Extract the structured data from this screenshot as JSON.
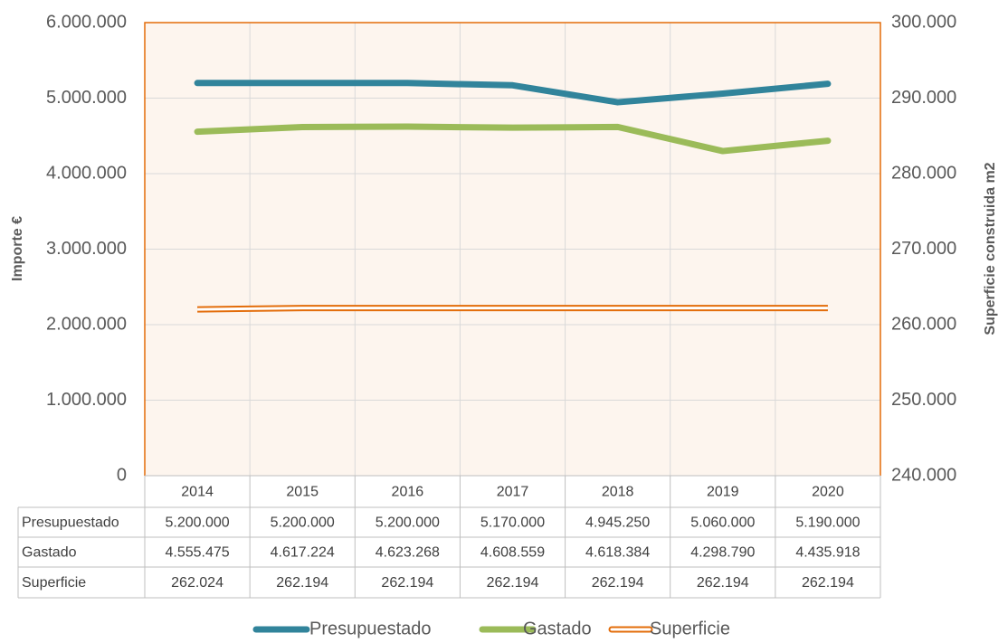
{
  "chart_data": {
    "type": "line",
    "y_label": "Importe €",
    "y2_label": "Superficie construida m2",
    "categories": [
      "2014",
      "2015",
      "2016",
      "2017",
      "2018",
      "2019",
      "2020"
    ],
    "series": [
      {
        "name": "Presupuestado",
        "color": "#31849b",
        "values": [
          5200000,
          5200000,
          5200000,
          5170000,
          4945250,
          5060000,
          5190000
        ],
        "value_labels": [
          "5.200.000",
          "5.200.000",
          "5.200.000",
          "5.170.000",
          "4.945.250",
          "5.060.000",
          "5.190.000"
        ]
      },
      {
        "name": "Gastado",
        "color": "#9bbb59",
        "values": [
          4555475,
          4617224,
          4623268,
          4608559,
          4618384,
          4298790,
          4435918
        ],
        "value_labels": [
          "4.555.475",
          "4.617.224",
          "4.623.268",
          "4.608.559",
          "4.618.384",
          "4.298.790",
          "4.435.918"
        ]
      },
      {
        "name": "Superficie",
        "color": "#e36c09",
        "axis": "y2",
        "values": [
          262024,
          262194,
          262194,
          262194,
          262194,
          262194,
          262194
        ],
        "value_labels": [
          "262.024",
          "262.194",
          "262.194",
          "262.194",
          "262.194",
          "262.194",
          "262.194"
        ]
      }
    ],
    "ylim": [
      0,
      6000000
    ],
    "yticks": [
      0,
      {
        "value": 1000000,
        "label": "1.000.000"
      },
      {
        "value": 2000000,
        "label": "2.000.000"
      },
      {
        "value": 3000000,
        "label": "3.000.000"
      },
      {
        "value": 4000000,
        "label": "4.000.000"
      },
      {
        "value": 5000000,
        "label": "5.000.000"
      },
      {
        "value": 6000000,
        "label": "6.000.000"
      }
    ],
    "y2lim": [
      240000,
      300000
    ],
    "y2ticks": [
      {
        "value": 240000,
        "label": "240.000"
      },
      {
        "value": 250000,
        "label": "250.000"
      },
      {
        "value": 260000,
        "label": "260.000"
      },
      {
        "value": 270000,
        "label": "270.000"
      },
      {
        "value": 280000,
        "label": "280.000"
      },
      {
        "value": 290000,
        "label": "290.000"
      },
      {
        "value": 300000,
        "label": "300.000"
      }
    ],
    "grid": true,
    "legend": "bottom"
  }
}
